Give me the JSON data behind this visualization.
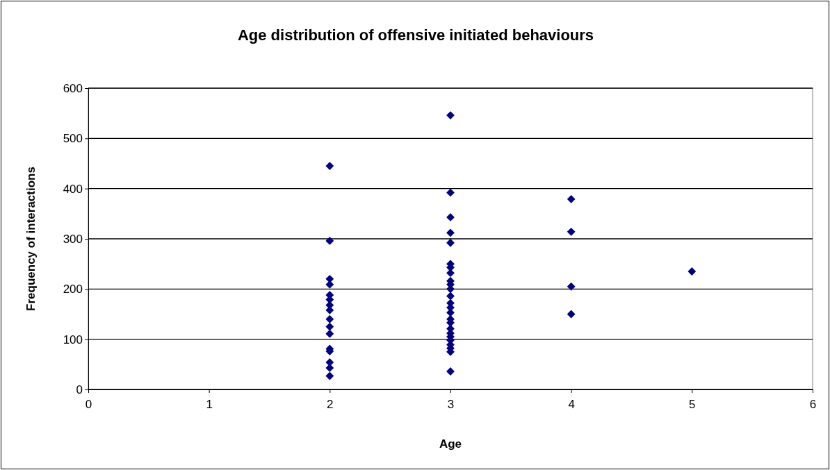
{
  "chart_data": {
    "type": "scatter",
    "title": "Age distribution of offensive initiated behaviours",
    "xlabel": "Age",
    "ylabel": "Frequency of interactions",
    "series": [
      {
        "color": "#000080",
        "x": [
          2,
          2,
          2,
          2,
          2,
          2,
          2,
          2,
          2,
          2,
          2,
          2,
          2,
          2,
          2,
          2,
          3,
          3,
          3,
          3,
          3,
          3,
          3,
          3,
          3,
          3,
          3,
          3,
          3,
          3,
          3,
          3,
          3,
          3,
          3,
          3,
          3,
          3,
          3,
          3,
          3,
          4,
          4,
          4,
          4,
          5
        ],
        "values": [
          445,
          296,
          220,
          209,
          188,
          179,
          168,
          158,
          140,
          125,
          111,
          81,
          76,
          54,
          43,
          27,
          546,
          392,
          343,
          312,
          292,
          250,
          243,
          232,
          216,
          209,
          200,
          186,
          172,
          163,
          153,
          140,
          133,
          121,
          112,
          105,
          98,
          89,
          82,
          75,
          36,
          379,
          314,
          205,
          150,
          235
        ]
      }
    ],
    "marker": "diamond",
    "grid": "y",
    "xlim": [
      0,
      6
    ],
    "xticks": [
      0,
      1,
      2,
      3,
      4,
      5,
      6
    ],
    "ylim": [
      0,
      600
    ],
    "yticks": [
      0,
      100,
      200,
      300,
      400,
      500,
      600
    ]
  }
}
